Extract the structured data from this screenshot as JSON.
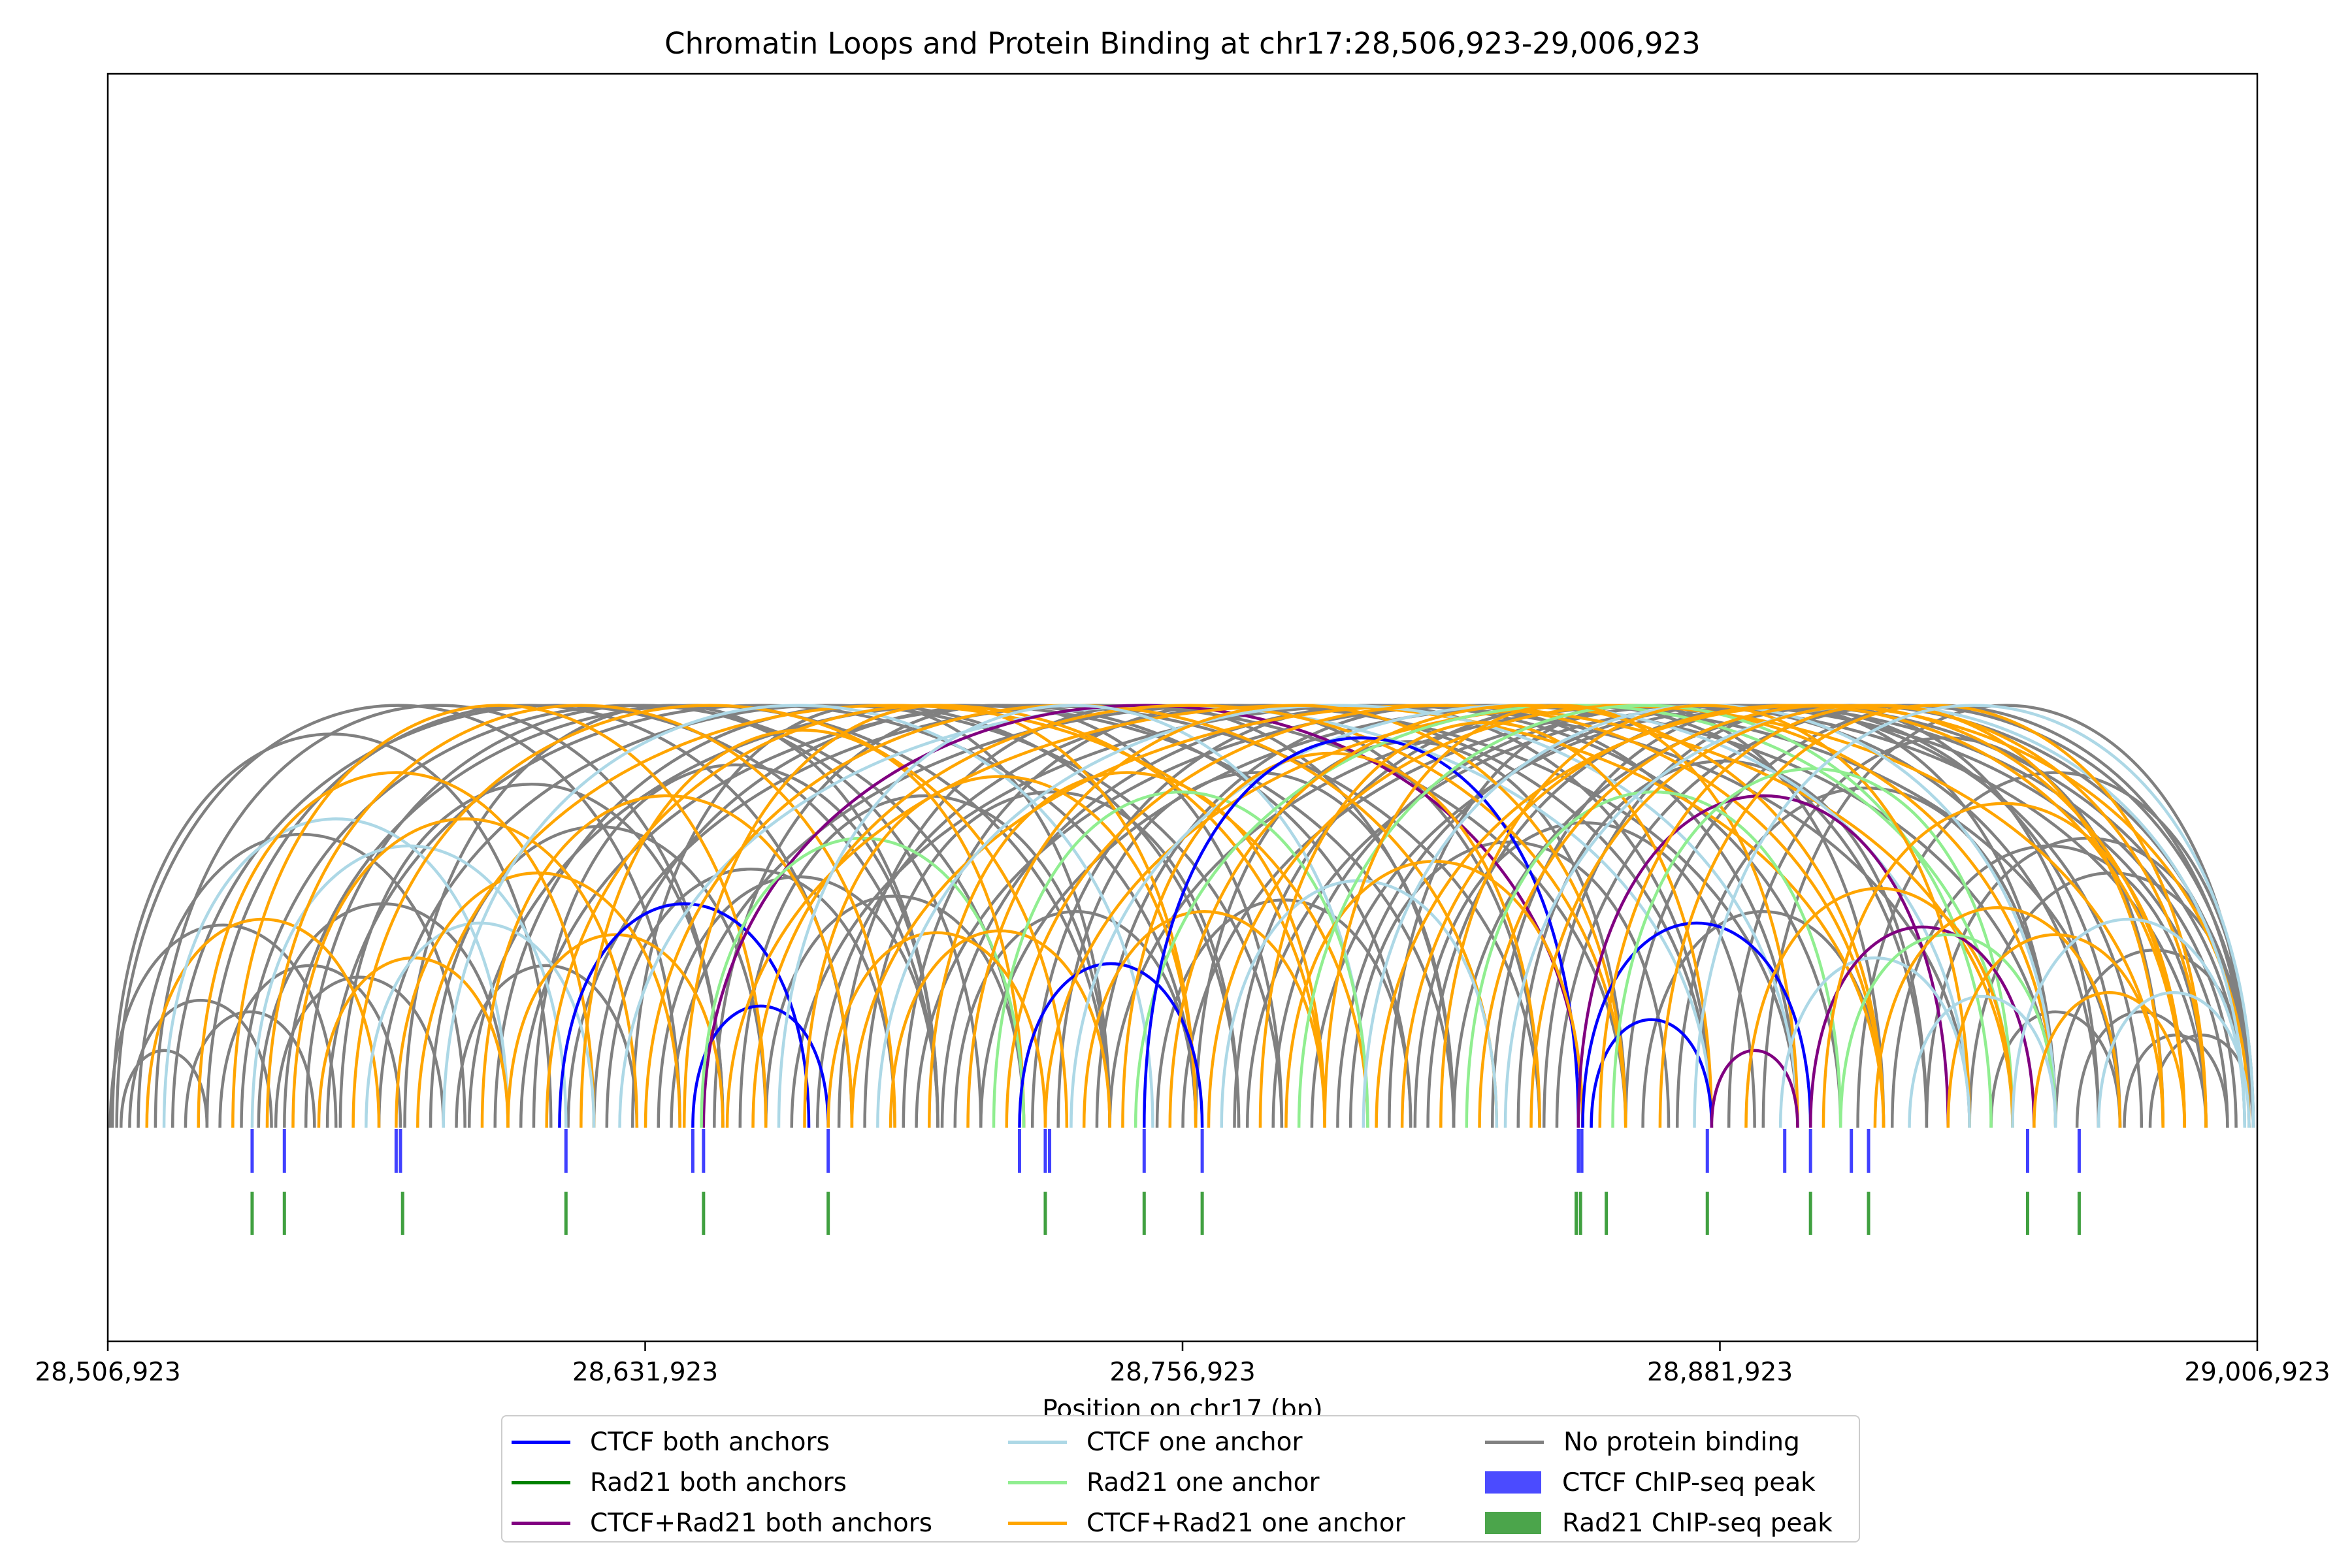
{
  "chart_data": {
    "type": "arc",
    "title": "Chromatin Loops and Protein Binding at chr17:28,506,923-29,006,923",
    "xlabel": "Position on chr17 (bp)",
    "ylabel": "",
    "xlim": [
      28506923,
      29006923
    ],
    "xticks": [
      28506923,
      28631923,
      28756923,
      28881923,
      29006923
    ],
    "xtick_labels": [
      "28,506,923",
      "28,631,923",
      "28,756,923",
      "28,881,923",
      "29,006,923"
    ],
    "grid": false,
    "legend_position": "below-center",
    "loop_categories": [
      {
        "key": "ctcf_both",
        "name": "CTCF both anchors",
        "color": "#0000ff"
      },
      {
        "key": "rad21_both",
        "name": "Rad21 both anchors",
        "color": "#008000"
      },
      {
        "key": "both_both",
        "name": "CTCF+Rad21 both anchors",
        "color": "#800080"
      },
      {
        "key": "ctcf_one",
        "name": "CTCF one anchor",
        "color": "#add8e6"
      },
      {
        "key": "rad21_one",
        "name": "Rad21 one anchor",
        "color": "#90ee90"
      },
      {
        "key": "both_one",
        "name": "CTCF+Rad21 one anchor",
        "color": "#ffa500"
      },
      {
        "key": "none",
        "name": "No protein binding",
        "color": "#808080"
      }
    ],
    "peak_tracks": [
      {
        "key": "ctcf_peak",
        "name": "CTCF ChIP-seq peak",
        "color": "#0000ff",
        "positions": [
          28540500,
          28548000,
          28574000,
          28575000,
          28613500,
          28643000,
          28645500,
          28674500,
          28719000,
          28725000,
          28726000,
          28748000,
          28761500,
          28849000,
          28849800,
          28879000,
          28897000,
          28903000,
          28912500,
          28916500,
          28953500,
          28965500
        ]
      },
      {
        "key": "rad21_peak",
        "name": "Rad21 ChIP-seq peak",
        "color": "#008000",
        "positions": [
          28540500,
          28548000,
          28575500,
          28613500,
          28645500,
          28674500,
          28725000,
          28748000,
          28761500,
          28848500,
          28849500,
          28855500,
          28879000,
          28903000,
          28916500,
          28953500,
          28965500
        ]
      }
    ],
    "loops": [
      {
        "start": 28507500,
        "end": 28560000,
        "cat": "none"
      },
      {
        "start": 28508000,
        "end": 28610000,
        "cat": "none"
      },
      {
        "start": 28509000,
        "end": 28640000,
        "cat": "none"
      },
      {
        "start": 28510000,
        "end": 28530000,
        "cat": "none"
      },
      {
        "start": 28512000,
        "end": 28545000,
        "cat": "none"
      },
      {
        "start": 28514000,
        "end": 28590000,
        "cat": "none"
      },
      {
        "start": 28516000,
        "end": 28570000,
        "cat": "both_one"
      },
      {
        "start": 28518000,
        "end": 28650000,
        "cat": "none"
      },
      {
        "start": 28520000,
        "end": 28600000,
        "cat": "ctcf_one"
      },
      {
        "start": 28522000,
        "end": 28700000,
        "cat": "none"
      },
      {
        "start": 28525000,
        "end": 28555000,
        "cat": "none"
      },
      {
        "start": 28528000,
        "end": 28620000,
        "cat": "both_one"
      },
      {
        "start": 28530000,
        "end": 28680000,
        "cat": "none"
      },
      {
        "start": 28533000,
        "end": 28575000,
        "cat": "none"
      },
      {
        "start": 28536000,
        "end": 28660000,
        "cat": "both_one"
      },
      {
        "start": 28538000,
        "end": 28720000,
        "cat": "none"
      },
      {
        "start": 28540500,
        "end": 28613500,
        "cat": "ctcf_one"
      },
      {
        "start": 28542000,
        "end": 28600000,
        "cat": "none"
      },
      {
        "start": 28544000,
        "end": 28690000,
        "cat": "both_one"
      },
      {
        "start": 28546000,
        "end": 28585000,
        "cat": "none"
      },
      {
        "start": 28548000,
        "end": 28740000,
        "cat": "none"
      },
      {
        "start": 28550000,
        "end": 28630000,
        "cat": "both_one"
      },
      {
        "start": 28553000,
        "end": 28710000,
        "cat": "none"
      },
      {
        "start": 28556000,
        "end": 28600000,
        "cat": "both_one"
      },
      {
        "start": 28558000,
        "end": 28760000,
        "cat": "none"
      },
      {
        "start": 28561000,
        "end": 28650000,
        "cat": "none"
      },
      {
        "start": 28564000,
        "end": 28730000,
        "cat": "both_one"
      },
      {
        "start": 28567000,
        "end": 28620000,
        "cat": "ctcf_one"
      },
      {
        "start": 28570000,
        "end": 28780000,
        "cat": "none"
      },
      {
        "start": 28574000,
        "end": 28640000,
        "cat": "both_one"
      },
      {
        "start": 28576000,
        "end": 28700000,
        "cat": "none"
      },
      {
        "start": 28579000,
        "end": 28800000,
        "cat": "both_one"
      },
      {
        "start": 28582000,
        "end": 28660000,
        "cat": "none"
      },
      {
        "start": 28585000,
        "end": 28750000,
        "cat": "ctcf_one"
      },
      {
        "start": 28588000,
        "end": 28630000,
        "cat": "none"
      },
      {
        "start": 28591000,
        "end": 28820000,
        "cat": "none"
      },
      {
        "start": 28594000,
        "end": 28680000,
        "cat": "both_one"
      },
      {
        "start": 28597000,
        "end": 28770000,
        "cat": "none"
      },
      {
        "start": 28600000,
        "end": 28650000,
        "cat": "both_one"
      },
      {
        "start": 28603000,
        "end": 28840000,
        "cat": "none"
      },
      {
        "start": 28606000,
        "end": 28700000,
        "cat": "none"
      },
      {
        "start": 28609000,
        "end": 28790000,
        "cat": "both_one"
      },
      {
        "start": 28612000,
        "end": 28670000,
        "cat": "ctcf_both"
      },
      {
        "start": 28614000,
        "end": 28860000,
        "cat": "none"
      },
      {
        "start": 28617000,
        "end": 28720000,
        "cat": "both_one"
      },
      {
        "start": 28620000,
        "end": 28810000,
        "cat": "none"
      },
      {
        "start": 28623000,
        "end": 28690000,
        "cat": "none"
      },
      {
        "start": 28626000,
        "end": 28880000,
        "cat": "ctcf_one"
      },
      {
        "start": 28629000,
        "end": 28740000,
        "cat": "none"
      },
      {
        "start": 28632000,
        "end": 28830000,
        "cat": "both_one"
      },
      {
        "start": 28635000,
        "end": 28700000,
        "cat": "none"
      },
      {
        "start": 28638000,
        "end": 28900000,
        "cat": "none"
      },
      {
        "start": 28641000,
        "end": 28760000,
        "cat": "both_one"
      },
      {
        "start": 28643000,
        "end": 28674500,
        "cat": "ctcf_both"
      },
      {
        "start": 28645500,
        "end": 28850000,
        "cat": "both_both"
      },
      {
        "start": 28645000,
        "end": 28720000,
        "cat": "rad21_one"
      },
      {
        "start": 28648000,
        "end": 28780000,
        "cat": "none"
      },
      {
        "start": 28651000,
        "end": 28920000,
        "cat": "both_one"
      },
      {
        "start": 28654000,
        "end": 28740000,
        "cat": "none"
      },
      {
        "start": 28657000,
        "end": 28860000,
        "cat": "both_one"
      },
      {
        "start": 28660000,
        "end": 28720000,
        "cat": "none"
      },
      {
        "start": 28663000,
        "end": 28800000,
        "cat": "ctcf_one"
      },
      {
        "start": 28666000,
        "end": 28940000,
        "cat": "none"
      },
      {
        "start": 28669000,
        "end": 28760000,
        "cat": "both_one"
      },
      {
        "start": 28672000,
        "end": 28880000,
        "cat": "none"
      },
      {
        "start": 28674500,
        "end": 28725000,
        "cat": "both_one"
      },
      {
        "start": 28677000,
        "end": 28820000,
        "cat": "none"
      },
      {
        "start": 28680000,
        "end": 28950000,
        "cat": "both_one"
      },
      {
        "start": 28683000,
        "end": 28770000,
        "cat": "none"
      },
      {
        "start": 28686000,
        "end": 28900000,
        "cat": "ctcf_one"
      },
      {
        "start": 28689000,
        "end": 28740000,
        "cat": "both_one"
      },
      {
        "start": 28692000,
        "end": 28840000,
        "cat": "none"
      },
      {
        "start": 28695000,
        "end": 28960000,
        "cat": "none"
      },
      {
        "start": 28698000,
        "end": 28790000,
        "cat": "both_one"
      },
      {
        "start": 28701000,
        "end": 28910000,
        "cat": "none"
      },
      {
        "start": 28704000,
        "end": 28760000,
        "cat": "none"
      },
      {
        "start": 28707000,
        "end": 28860000,
        "cat": "both_one"
      },
      {
        "start": 28710000,
        "end": 28975000,
        "cat": "none"
      },
      {
        "start": 28713000,
        "end": 28800000,
        "cat": "rad21_one"
      },
      {
        "start": 28716000,
        "end": 28920000,
        "cat": "both_one"
      },
      {
        "start": 28719000,
        "end": 28761500,
        "cat": "ctcf_both"
      },
      {
        "start": 28722000,
        "end": 28880000,
        "cat": "none"
      },
      {
        "start": 28725000,
        "end": 28985000,
        "cat": "both_one"
      },
      {
        "start": 28728000,
        "end": 28820000,
        "cat": "none"
      },
      {
        "start": 28731000,
        "end": 28940000,
        "cat": "ctcf_one"
      },
      {
        "start": 28734000,
        "end": 28790000,
        "cat": "both_one"
      },
      {
        "start": 28737000,
        "end": 28900000,
        "cat": "none"
      },
      {
        "start": 28740000,
        "end": 28995000,
        "cat": "none"
      },
      {
        "start": 28743000,
        "end": 28840000,
        "cat": "both_one"
      },
      {
        "start": 28746000,
        "end": 28950000,
        "cat": "rad21_one"
      },
      {
        "start": 28748000,
        "end": 28849000,
        "cat": "ctcf_both"
      },
      {
        "start": 28751000,
        "end": 28810000,
        "cat": "none"
      },
      {
        "start": 28754000,
        "end": 28920000,
        "cat": "both_one"
      },
      {
        "start": 28757000,
        "end": 29000000,
        "cat": "none"
      },
      {
        "start": 28760000,
        "end": 28860000,
        "cat": "none"
      },
      {
        "start": 28763000,
        "end": 28960000,
        "cat": "both_one"
      },
      {
        "start": 28766000,
        "end": 28830000,
        "cat": "ctcf_one"
      },
      {
        "start": 28769000,
        "end": 28930000,
        "cat": "none"
      },
      {
        "start": 28772000,
        "end": 29002000,
        "cat": "none"
      },
      {
        "start": 28775000,
        "end": 28880000,
        "cat": "both_one"
      },
      {
        "start": 28778000,
        "end": 28970000,
        "cat": "none"
      },
      {
        "start": 28781000,
        "end": 28850000,
        "cat": "both_one"
      },
      {
        "start": 28784000,
        "end": 28945000,
        "cat": "rad21_one"
      },
      {
        "start": 28787000,
        "end": 29004000,
        "cat": "none"
      },
      {
        "start": 28790000,
        "end": 28900000,
        "cat": "both_one"
      },
      {
        "start": 28793000,
        "end": 28980000,
        "cat": "none"
      },
      {
        "start": 28796000,
        "end": 28870000,
        "cat": "none"
      },
      {
        "start": 28799000,
        "end": 28960000,
        "cat": "ctcf_one"
      },
      {
        "start": 28802000,
        "end": 29005000,
        "cat": "both_one"
      },
      {
        "start": 28805000,
        "end": 28920000,
        "cat": "none"
      },
      {
        "start": 28808000,
        "end": 28990000,
        "cat": "both_one"
      },
      {
        "start": 28811000,
        "end": 28890000,
        "cat": "none"
      },
      {
        "start": 28814000,
        "end": 28975000,
        "cat": "none"
      },
      {
        "start": 28817000,
        "end": 28940000,
        "cat": "both_one"
      },
      {
        "start": 28820000,
        "end": 29005000,
        "cat": "none"
      },
      {
        "start": 28823000,
        "end": 28910000,
        "cat": "rad21_one"
      },
      {
        "start": 28826000,
        "end": 28990000,
        "cat": "both_one"
      },
      {
        "start": 28829000,
        "end": 28960000,
        "cat": "none"
      },
      {
        "start": 28832000,
        "end": 29004000,
        "cat": "ctcf_one"
      },
      {
        "start": 28835000,
        "end": 28930000,
        "cat": "none"
      },
      {
        "start": 28838000,
        "end": 28995000,
        "cat": "both_one"
      },
      {
        "start": 28841000,
        "end": 28970000,
        "cat": "none"
      },
      {
        "start": 28844000,
        "end": 29006000,
        "cat": "none"
      },
      {
        "start": 28849000,
        "end": 28935000,
        "cat": "both_both"
      },
      {
        "start": 28850000,
        "end": 28903000,
        "cat": "ctcf_both"
      },
      {
        "start": 28852000,
        "end": 28880000,
        "cat": "ctcf_both"
      },
      {
        "start": 28854000,
        "end": 28985000,
        "cat": "both_one"
      },
      {
        "start": 28857000,
        "end": 28950000,
        "cat": "rad21_one"
      },
      {
        "start": 28860000,
        "end": 29005000,
        "cat": "none"
      },
      {
        "start": 28864000,
        "end": 28920000,
        "cat": "none"
      },
      {
        "start": 28868000,
        "end": 28995000,
        "cat": "both_one"
      },
      {
        "start": 28872000,
        "end": 28960000,
        "cat": "none"
      },
      {
        "start": 28876000,
        "end": 29006000,
        "cat": "ctcf_one"
      },
      {
        "start": 28880000,
        "end": 28900000,
        "cat": "both_both"
      },
      {
        "start": 28884000,
        "end": 28985000,
        "cat": "none"
      },
      {
        "start": 28888000,
        "end": 28950000,
        "cat": "both_one"
      },
      {
        "start": 28892000,
        "end": 29005000,
        "cat": "none"
      },
      {
        "start": 28896000,
        "end": 28940000,
        "cat": "ctcf_one"
      },
      {
        "start": 28903000,
        "end": 28955000,
        "cat": "both_both"
      },
      {
        "start": 28906000,
        "end": 28990000,
        "cat": "both_one"
      },
      {
        "start": 28910000,
        "end": 28960000,
        "cat": "rad21_one"
      },
      {
        "start": 28914000,
        "end": 29006000,
        "cat": "none"
      },
      {
        "start": 28918000,
        "end": 28975000,
        "cat": "both_one"
      },
      {
        "start": 28922000,
        "end": 28995000,
        "cat": "none"
      },
      {
        "start": 28926000,
        "end": 28960000,
        "cat": "ctcf_one"
      },
      {
        "start": 28930000,
        "end": 29005000,
        "cat": "none"
      },
      {
        "start": 28935000,
        "end": 28985000,
        "cat": "both_one"
      },
      {
        "start": 28940000,
        "end": 29006000,
        "cat": "none"
      },
      {
        "start": 28945000,
        "end": 28975000,
        "cat": "none"
      },
      {
        "start": 28950000,
        "end": 29004000,
        "cat": "ctcf_one"
      },
      {
        "start": 28955000,
        "end": 28990000,
        "cat": "both_one"
      },
      {
        "start": 28960000,
        "end": 29006000,
        "cat": "none"
      },
      {
        "start": 28965000,
        "end": 28995000,
        "cat": "none"
      },
      {
        "start": 28970000,
        "end": 29005000,
        "cat": "ctcf_one"
      },
      {
        "start": 28976000,
        "end": 29000000,
        "cat": "none"
      },
      {
        "start": 28982000,
        "end": 29006000,
        "cat": "none"
      }
    ]
  }
}
